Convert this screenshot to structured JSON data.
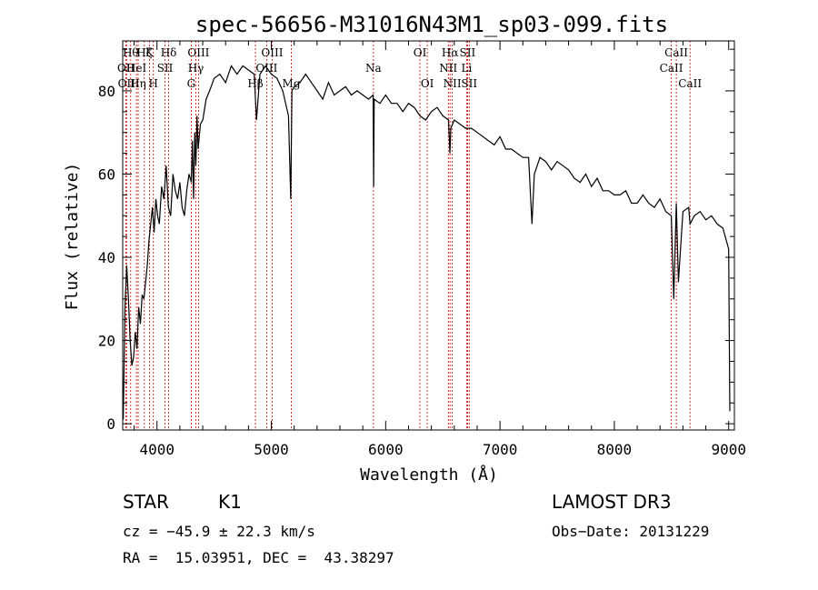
{
  "chart_data": {
    "type": "line",
    "title": "spec-56656-M31016N43M1_sp03-099.fits",
    "xlabel": "Wavelength (Å)",
    "ylabel": "Flux (relative)",
    "xlim": [
      3700,
      9050
    ],
    "ylim": [
      -1.5,
      92
    ],
    "x_ticks": [
      4000,
      5000,
      6000,
      7000,
      8000,
      9000
    ],
    "y_ticks": [
      0,
      20,
      40,
      60,
      80
    ],
    "x_tick_labels": [
      "4000",
      "5000",
      "6000",
      "7000",
      "8000",
      "9000"
    ],
    "y_tick_labels": [
      "0",
      "20",
      "40",
      "60",
      "80"
    ],
    "series": [
      {
        "name": "flux",
        "x": [
          3705,
          3720,
          3735,
          3750,
          3765,
          3780,
          3795,
          3810,
          3825,
          3840,
          3855,
          3870,
          3885,
          3900,
          3915,
          3930,
          3945,
          3960,
          3975,
          3990,
          4005,
          4020,
          4040,
          4060,
          4080,
          4100,
          4120,
          4140,
          4160,
          4180,
          4200,
          4220,
          4240,
          4260,
          4280,
          4300,
          4310,
          4320,
          4330,
          4340,
          4350,
          4360,
          4380,
          4400,
          4430,
          4460,
          4500,
          4550,
          4600,
          4650,
          4700,
          4750,
          4800,
          4850,
          4870,
          4900,
          4950,
          5000,
          5050,
          5100,
          5150,
          5170,
          5180,
          5200,
          5250,
          5300,
          5350,
          5400,
          5450,
          5500,
          5550,
          5600,
          5650,
          5700,
          5750,
          5800,
          5850,
          5890,
          5895,
          5900,
          5950,
          6000,
          6050,
          6100,
          6150,
          6200,
          6250,
          6300,
          6350,
          6400,
          6450,
          6500,
          6550,
          6562,
          6570,
          6600,
          6650,
          6700,
          6750,
          6800,
          6850,
          6900,
          6950,
          7000,
          7050,
          7100,
          7150,
          7200,
          7250,
          7280,
          7300,
          7350,
          7400,
          7450,
          7500,
          7550,
          7600,
          7650,
          7700,
          7750,
          7800,
          7850,
          7900,
          7950,
          8000,
          8050,
          8100,
          8150,
          8200,
          8250,
          8300,
          8350,
          8400,
          8450,
          8498,
          8520,
          8542,
          8560,
          8600,
          8650,
          8662,
          8700,
          8750,
          8800,
          8850,
          8900,
          8950,
          9000,
          9010
        ],
        "values": [
          1,
          28,
          38,
          30,
          20,
          14,
          16,
          22,
          18,
          28,
          24,
          31,
          30,
          34,
          38,
          44,
          48,
          52,
          46,
          54,
          50,
          48,
          57,
          54,
          62,
          52,
          50,
          60,
          56,
          54,
          58,
          52,
          50,
          56,
          60,
          58,
          68,
          54,
          70,
          62,
          74,
          66,
          72,
          73,
          78,
          80,
          83,
          84,
          82,
          86,
          84,
          86,
          85,
          84,
          73,
          84,
          86,
          84,
          83,
          80,
          74,
          54,
          80,
          81,
          82,
          84,
          82,
          80,
          78,
          82,
          79,
          80,
          81,
          79,
          80,
          79,
          78,
          79,
          57,
          78,
          77,
          79,
          77,
          77,
          75,
          77,
          76,
          74,
          73,
          75,
          76,
          74,
          73,
          65,
          71,
          73,
          72,
          71,
          71,
          70,
          69,
          68,
          67,
          69,
          66,
          66,
          65,
          64,
          64,
          48,
          60,
          64,
          63,
          61,
          63,
          62,
          61,
          59,
          58,
          60,
          57,
          59,
          56,
          56,
          55,
          55,
          56,
          53,
          53,
          55,
          53,
          52,
          54,
          51,
          50,
          30,
          53,
          34,
          51,
          52,
          48,
          50,
          51,
          49,
          50,
          48,
          47,
          42,
          3
        ]
      }
    ],
    "line_markers": [
      {
        "wavelength": 3729,
        "label": "OII",
        "row": 2
      },
      {
        "wavelength": 3734,
        "label": "OII",
        "row": 3
      },
      {
        "wavelength": 3770,
        "label": "Hθ",
        "row": 1
      },
      {
        "wavelength": 3820,
        "label": "HeI",
        "row": 2
      },
      {
        "wavelength": 3835,
        "label": "Hη",
        "row": 3
      },
      {
        "wavelength": 3889,
        "label": "Hζ",
        "row": 1
      },
      {
        "wavelength": 3934,
        "label": "K",
        "row": 1
      },
      {
        "wavelength": 3968,
        "label": "H",
        "row": 3
      },
      {
        "wavelength": 4070,
        "label": "SII",
        "row": 2
      },
      {
        "wavelength": 4102,
        "label": "Hδ",
        "row": 1
      },
      {
        "wavelength": 4300,
        "label": "G",
        "row": 3
      },
      {
        "wavelength": 4340,
        "label": "Hγ",
        "row": 2
      },
      {
        "wavelength": 4363,
        "label": "OIII",
        "row": 1
      },
      {
        "wavelength": 4861,
        "label": "Hβ",
        "row": 3
      },
      {
        "wavelength": 4959,
        "label": "OIII",
        "row": 2
      },
      {
        "wavelength": 5007,
        "label": "OIII",
        "row": 1
      },
      {
        "wavelength": 5175,
        "label": "Mg",
        "row": 3
      },
      {
        "wavelength": 5893,
        "label": "Na",
        "row": 2
      },
      {
        "wavelength": 6300,
        "label": "OI",
        "row": 1
      },
      {
        "wavelength": 6364,
        "label": "OI",
        "row": 3
      },
      {
        "wavelength": 6548,
        "label": "NII",
        "row": 2
      },
      {
        "wavelength": 6563,
        "label": "Hα",
        "row": 1
      },
      {
        "wavelength": 6583,
        "label": "NII",
        "row": 3
      },
      {
        "wavelength": 6708,
        "label": "Li",
        "row": 2
      },
      {
        "wavelength": 6716,
        "label": "SII",
        "row": 1
      },
      {
        "wavelength": 6731,
        "label": "SII",
        "row": 3
      },
      {
        "wavelength": 8498,
        "label": "CaII",
        "row": 2
      },
      {
        "wavelength": 8542,
        "label": "CaII",
        "row": 1
      },
      {
        "wavelength": 8662,
        "label": "CaII",
        "row": 3
      }
    ],
    "colors": {
      "line": "#000000",
      "marker": "#cc0000",
      "axis": "#000000"
    }
  },
  "info": {
    "class": "STAR",
    "subclass": "K1",
    "survey": "LAMOST DR3",
    "redshift": "cz = −45.9 ± 22.3 km/s",
    "obs_date": "Obs−Date: 20131229",
    "coords": "RA =  15.03951, DEC =  43.38297"
  }
}
